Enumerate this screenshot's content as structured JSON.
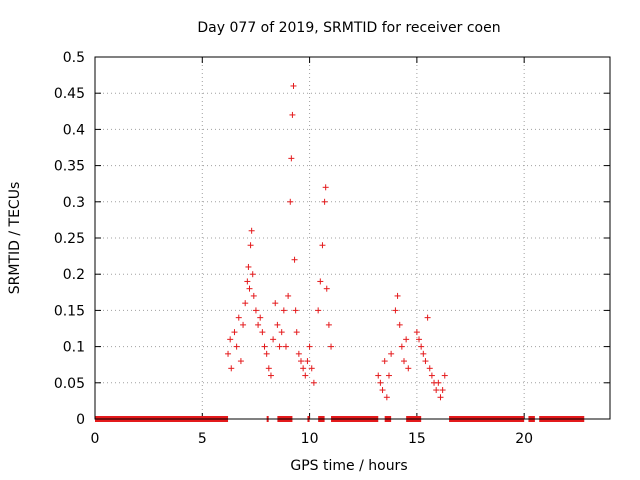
{
  "chart_data": {
    "type": "scatter",
    "title": "Day 077 of 2019, SRMTID for receiver coen",
    "xlabel": "GPS time / hours",
    "ylabel": "SRMTID / TECUs",
    "xlim": [
      0,
      24
    ],
    "ylim": [
      0,
      0.5
    ],
    "xticks": [
      0,
      5,
      10,
      15,
      20
    ],
    "xtick_labels": [
      "0",
      "5",
      "10",
      "15",
      "20"
    ],
    "yticks": [
      0,
      0.05,
      0.1,
      0.15,
      0.2,
      0.25,
      0.3,
      0.35,
      0.4,
      0.45,
      0.5
    ],
    "ytick_labels": [
      "0",
      "0.05",
      "0.1",
      "0.15",
      "0.2",
      "0.25",
      "0.3",
      "0.35",
      "0.4",
      "0.45",
      "0.5"
    ],
    "grid": true,
    "marker": "+",
    "marker_color": "#e41a1c",
    "series": [
      {
        "name": "SRMTID",
        "points": [
          [
            6.2,
            0.09
          ],
          [
            6.3,
            0.11
          ],
          [
            6.35,
            0.07
          ],
          [
            6.5,
            0.12
          ],
          [
            6.6,
            0.1
          ],
          [
            6.7,
            0.14
          ],
          [
            6.8,
            0.08
          ],
          [
            6.9,
            0.13
          ],
          [
            7.0,
            0.16
          ],
          [
            7.1,
            0.19
          ],
          [
            7.15,
            0.21
          ],
          [
            7.2,
            0.18
          ],
          [
            7.25,
            0.24
          ],
          [
            7.3,
            0.26
          ],
          [
            7.35,
            0.2
          ],
          [
            7.4,
            0.17
          ],
          [
            7.5,
            0.15
          ],
          [
            7.6,
            0.13
          ],
          [
            7.7,
            0.14
          ],
          [
            7.8,
            0.12
          ],
          [
            7.9,
            0.1
          ],
          [
            8.0,
            0.09
          ],
          [
            8.1,
            0.07
          ],
          [
            8.2,
            0.06
          ],
          [
            8.3,
            0.11
          ],
          [
            8.4,
            0.16
          ],
          [
            8.5,
            0.13
          ],
          [
            8.6,
            0.1
          ],
          [
            8.7,
            0.12
          ],
          [
            8.8,
            0.15
          ],
          [
            8.9,
            0.1
          ],
          [
            9.0,
            0.17
          ],
          [
            9.1,
            0.3
          ],
          [
            9.15,
            0.36
          ],
          [
            9.2,
            0.42
          ],
          [
            9.25,
            0.46
          ],
          [
            9.3,
            0.22
          ],
          [
            9.35,
            0.15
          ],
          [
            9.4,
            0.12
          ],
          [
            9.5,
            0.09
          ],
          [
            9.6,
            0.08
          ],
          [
            9.7,
            0.07
          ],
          [
            9.8,
            0.06
          ],
          [
            9.9,
            0.08
          ],
          [
            10.0,
            0.1
          ],
          [
            10.1,
            0.07
          ],
          [
            10.2,
            0.05
          ],
          [
            10.4,
            0.15
          ],
          [
            10.5,
            0.19
          ],
          [
            10.6,
            0.24
          ],
          [
            10.7,
            0.3
          ],
          [
            10.75,
            0.32
          ],
          [
            10.8,
            0.18
          ],
          [
            10.9,
            0.13
          ],
          [
            11.0,
            0.1
          ],
          [
            13.2,
            0.06
          ],
          [
            13.3,
            0.05
          ],
          [
            13.4,
            0.04
          ],
          [
            13.5,
            0.08
          ],
          [
            13.6,
            0.03
          ],
          [
            13.7,
            0.06
          ],
          [
            13.8,
            0.09
          ],
          [
            14.0,
            0.15
          ],
          [
            14.1,
            0.17
          ],
          [
            14.2,
            0.13
          ],
          [
            14.3,
            0.1
          ],
          [
            14.4,
            0.08
          ],
          [
            14.5,
            0.11
          ],
          [
            14.6,
            0.07
          ],
          [
            15.0,
            0.12
          ],
          [
            15.1,
            0.11
          ],
          [
            15.2,
            0.1
          ],
          [
            15.3,
            0.09
          ],
          [
            15.4,
            0.08
          ],
          [
            15.5,
            0.14
          ],
          [
            15.6,
            0.07
          ],
          [
            15.7,
            0.06
          ],
          [
            15.8,
            0.05
          ],
          [
            15.9,
            0.04
          ],
          [
            16.0,
            0.05
          ],
          [
            16.1,
            0.03
          ],
          [
            16.2,
            0.04
          ],
          [
            16.3,
            0.06
          ]
        ],
        "baseline_segments": [
          [
            0.0,
            6.2
          ],
          [
            8.0,
            8.05
          ],
          [
            8.5,
            9.2
          ],
          [
            9.9,
            10.0
          ],
          [
            10.4,
            10.7
          ],
          [
            11.0,
            13.2
          ],
          [
            13.5,
            13.8
          ],
          [
            14.5,
            15.2
          ],
          [
            16.5,
            20.0
          ],
          [
            20.2,
            20.5
          ],
          [
            20.7,
            22.8
          ]
        ]
      }
    ]
  }
}
